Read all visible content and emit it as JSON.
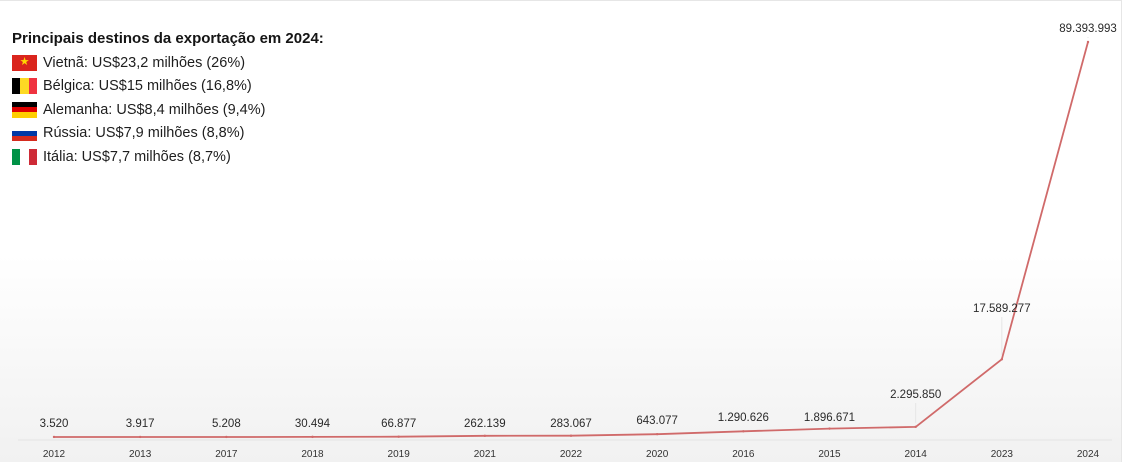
{
  "chart_data": {
    "type": "line",
    "title": "",
    "xlabel": "",
    "ylabel": "",
    "categories": [
      "2012",
      "2013",
      "2017",
      "2018",
      "2019",
      "2021",
      "2022",
      "2020",
      "2016",
      "2015",
      "2014",
      "2023",
      "2024"
    ],
    "series": [
      {
        "values": [
          3520,
          3917,
          5208,
          30494,
          66877,
          262139,
          283067,
          643077,
          1290626,
          1896671,
          2295850,
          17589277,
          89393993
        ],
        "labels": [
          "3.520",
          "3.917",
          "5.208",
          "30.494",
          "66.877",
          "262.139",
          "283.067",
          "643.077",
          "1.290.626",
          "1.896.671",
          "2.295.850",
          "17.589.277",
          "89.393.993"
        ],
        "color": "#d06a6a"
      }
    ],
    "ylim": [
      0,
      89393993
    ],
    "grid": false,
    "legend": {
      "placement": "top-left",
      "title": "Principais destinos da exportação em 2024:",
      "items": [
        {
          "flag": "vietnam-flag",
          "text": "Vietnã: US$23,2 milhões (26%)"
        },
        {
          "flag": "belgium-flag",
          "text": "Bélgica: US$15 milhões (16,8%)"
        },
        {
          "flag": "germany-flag",
          "text": "Alemanha: US$8,4 milhões (9,4%)"
        },
        {
          "flag": "russia-flag",
          "text": "Rússia: US$7,9 milhões (8,8%)"
        },
        {
          "flag": "italy-flag",
          "text": "Itália: US$7,7 milhões (8,7%)"
        }
      ]
    }
  }
}
